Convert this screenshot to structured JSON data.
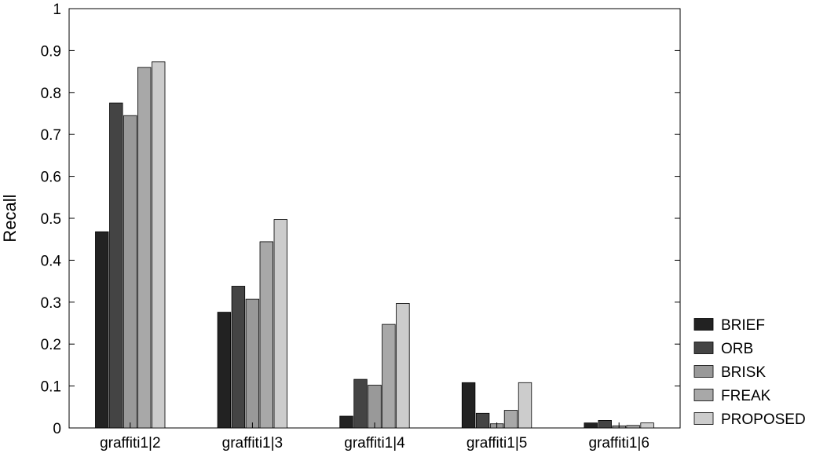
{
  "chart_data": {
    "type": "bar",
    "title": "",
    "xlabel": "",
    "ylabel": "Recall",
    "ylim": [
      0,
      1
    ],
    "yticks": [
      "0",
      "0.1",
      "0.2",
      "0.3",
      "0.4",
      "0.5",
      "0.6",
      "0.7",
      "0.8",
      "0.9",
      "1"
    ],
    "categories": [
      "graffiti1|2",
      "graffiti1|3",
      "graffiti1|4",
      "graffiti1|5",
      "graffiti1|6"
    ],
    "series": [
      {
        "name": "BRIEF",
        "color": "#222222",
        "values": [
          0.468,
          0.276,
          0.028,
          0.108,
          0.012
        ]
      },
      {
        "name": "ORB",
        "color": "#444444",
        "values": [
          0.775,
          0.338,
          0.116,
          0.035,
          0.018
        ]
      },
      {
        "name": "BRISK",
        "color": "#999999",
        "values": [
          0.745,
          0.307,
          0.102,
          0.01,
          0.005
        ]
      },
      {
        "name": "FREAK",
        "color": "#a8a8a8",
        "values": [
          0.86,
          0.444,
          0.247,
          0.042,
          0.006
        ]
      },
      {
        "name": "PROPOSED",
        "color": "#cccccc",
        "values": [
          0.873,
          0.497,
          0.297,
          0.108,
          0.012
        ]
      }
    ],
    "legend_position": "bottom-right outside",
    "grid": false
  }
}
